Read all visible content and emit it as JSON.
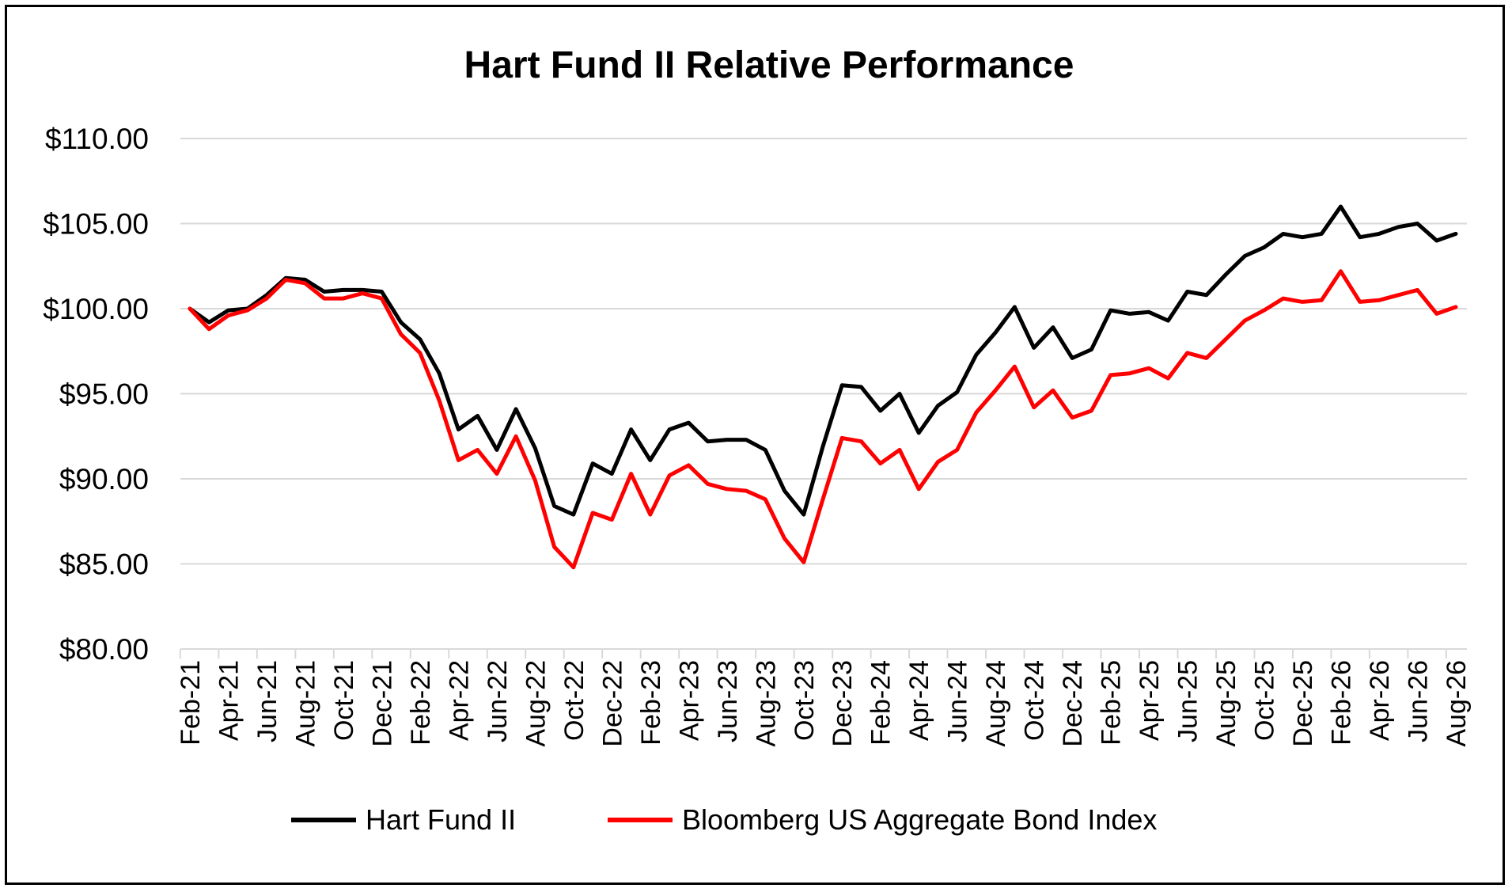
{
  "chart_data": {
    "type": "line",
    "title": "Hart Fund II Relative Performance",
    "xlabel": "",
    "ylabel": "",
    "ylim": [
      80,
      110
    ],
    "y_ticks": [
      80,
      85,
      90,
      95,
      100,
      105,
      110
    ],
    "y_tick_labels": [
      "$80.00",
      "$85.00",
      "$90.00",
      "$95.00",
      "$100.00",
      "$105.00",
      "$110.00"
    ],
    "x_tick_labels": [
      "Feb-21",
      "Apr-21",
      "Jun-21",
      "Aug-21",
      "Oct-21",
      "Dec-21",
      "Feb-22",
      "Apr-22",
      "Jun-22",
      "Aug-22",
      "Oct-22",
      "Dec-22",
      "Feb-23",
      "Apr-23",
      "Jun-23",
      "Aug-23",
      "Oct-23",
      "Dec-23",
      "Feb-24",
      "Apr-24",
      "Jun-24",
      "Aug-24",
      "Oct-24",
      "Dec-24",
      "Feb-25",
      "Apr-25",
      "Jun-25",
      "Aug-25",
      "Oct-25",
      "Dec-25",
      "Feb-26",
      "Apr-26",
      "Jun-26",
      "Aug-26"
    ],
    "x": [
      "Feb-21",
      "Mar-21",
      "Apr-21",
      "May-21",
      "Jun-21",
      "Jul-21",
      "Aug-21",
      "Sep-21",
      "Oct-21",
      "Nov-21",
      "Dec-21",
      "Jan-22",
      "Feb-22",
      "Mar-22",
      "Apr-22",
      "May-22",
      "Jun-22",
      "Jul-22",
      "Aug-22",
      "Sep-22",
      "Oct-22",
      "Nov-22",
      "Dec-22",
      "Jan-23",
      "Feb-23",
      "Mar-23",
      "Apr-23",
      "May-23",
      "Jun-23",
      "Jul-23",
      "Aug-23",
      "Sep-23",
      "Oct-23",
      "Nov-23",
      "Dec-23",
      "Jan-24",
      "Feb-24",
      "Mar-24",
      "Apr-24",
      "May-24",
      "Jun-24",
      "Jul-24",
      "Aug-24",
      "Sep-24",
      "Oct-24",
      "Nov-24",
      "Dec-24",
      "Jan-25",
      "Feb-25",
      "Mar-25",
      "Apr-25",
      "May-25",
      "Jun-25",
      "Jul-25",
      "Aug-25",
      "Sep-25",
      "Oct-25",
      "Nov-25",
      "Dec-25",
      "Jan-26",
      "Feb-26",
      "Mar-26",
      "Apr-26",
      "May-26",
      "Jun-26",
      "Jul-26",
      "Aug-26"
    ],
    "series": [
      {
        "name": "Hart Fund II",
        "color": "#000000",
        "values": [
          100.0,
          99.2,
          99.9,
          100.0,
          100.8,
          101.8,
          101.7,
          101.0,
          101.1,
          101.1,
          101.0,
          99.2,
          98.2,
          96.2,
          92.9,
          93.7,
          91.7,
          94.1,
          91.8,
          88.4,
          87.9,
          90.9,
          90.3,
          92.9,
          91.1,
          92.9,
          93.3,
          92.2,
          92.3,
          92.3,
          91.7,
          89.3,
          87.9,
          91.9,
          95.5,
          95.4,
          94.0,
          95.0,
          92.7,
          94.3,
          95.1,
          97.3,
          98.6,
          100.1,
          97.7,
          98.9,
          97.1,
          97.6,
          99.9,
          99.7,
          99.8,
          99.3,
          101.0,
          100.8,
          102.0,
          103.1,
          103.6,
          104.4,
          104.2,
          104.4,
          106.0,
          104.2,
          104.4,
          104.8,
          105.0,
          104.0,
          104.4
        ]
      },
      {
        "name": "Bloomberg US Aggregate Bond Index",
        "color": "#ff0000",
        "values": [
          100.0,
          98.8,
          99.6,
          99.9,
          100.6,
          101.7,
          101.5,
          100.6,
          100.6,
          100.9,
          100.6,
          98.5,
          97.4,
          94.6,
          91.1,
          91.7,
          90.3,
          92.5,
          89.9,
          86.0,
          84.8,
          88.0,
          87.6,
          90.3,
          87.9,
          90.2,
          90.8,
          89.7,
          89.4,
          89.3,
          88.8,
          86.5,
          85.1,
          88.8,
          92.4,
          92.2,
          90.9,
          91.7,
          89.4,
          91.0,
          91.7,
          93.9,
          95.2,
          96.6,
          94.2,
          95.2,
          93.6,
          94.0,
          96.1,
          96.2,
          96.5,
          95.9,
          97.4,
          97.1,
          98.2,
          99.3,
          99.9,
          100.6,
          100.4,
          100.5,
          102.2,
          100.4,
          100.5,
          100.8,
          101.1,
          99.7,
          100.1
        ]
      }
    ],
    "grid": true,
    "legend_position": "bottom"
  }
}
